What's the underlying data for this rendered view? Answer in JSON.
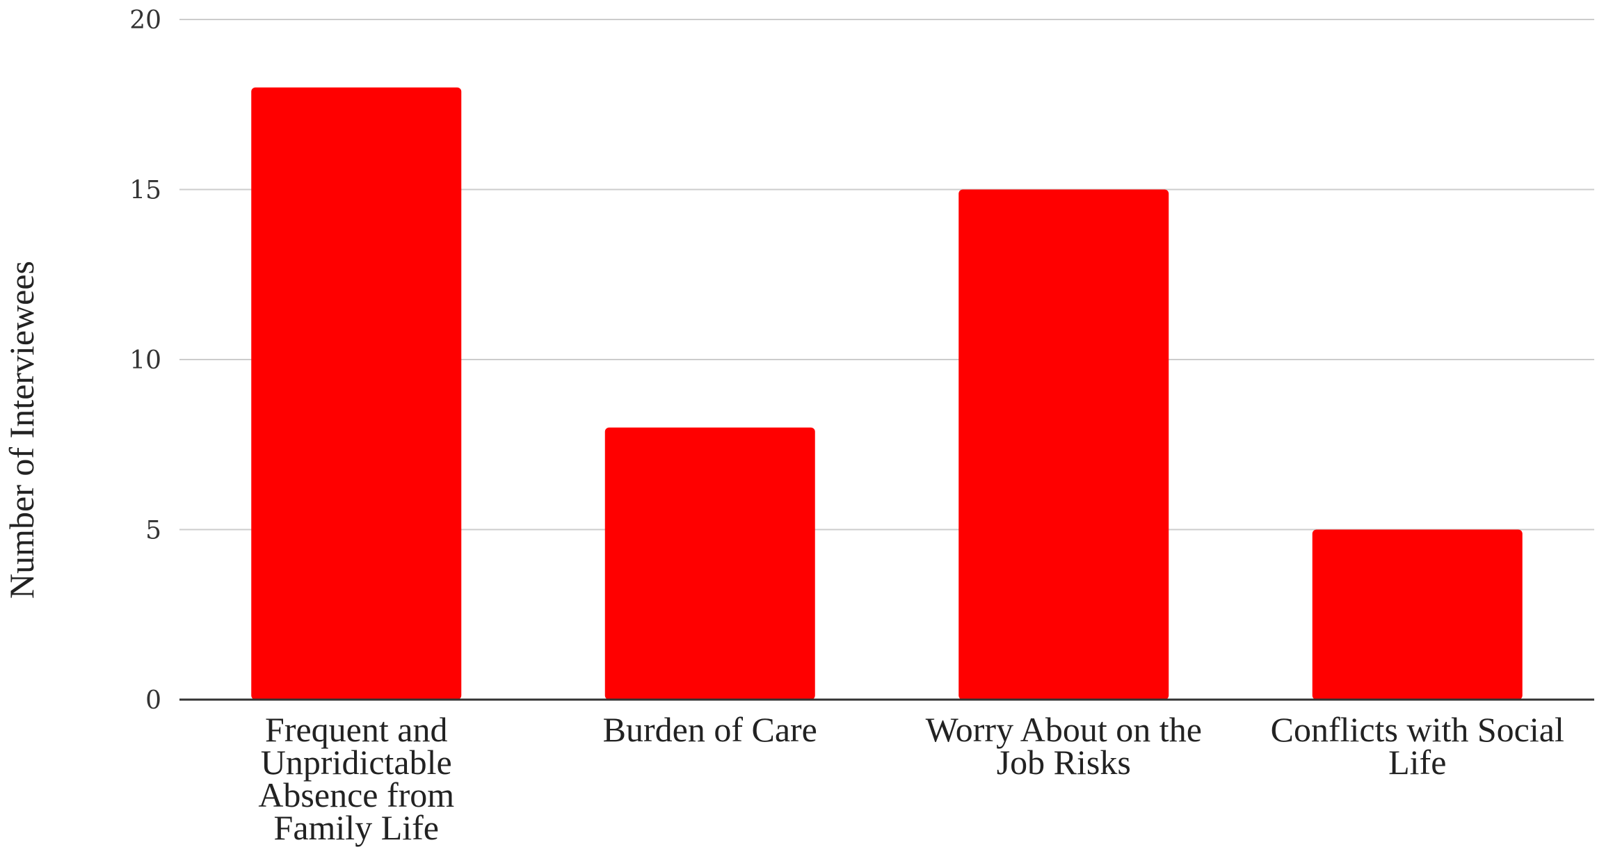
{
  "chart_data": {
    "type": "bar",
    "categories": [
      [
        "Frequent and",
        "Unpridictable",
        "Absence from",
        "Family Life"
      ],
      [
        "Burden of Care"
      ],
      [
        "Worry About on the",
        "Job Risks"
      ],
      [
        "Conflicts with Social",
        "Life"
      ]
    ],
    "values": [
      18,
      8,
      15,
      5
    ],
    "ylabel": "Number of Interviewees",
    "ylim": [
      0,
      20
    ],
    "yticks": [
      "0",
      "5",
      "10",
      "15",
      "20"
    ],
    "grid": true,
    "bar_color": "#ff0000",
    "gridline_color": "#cccccc",
    "axis_color": "#333333"
  }
}
